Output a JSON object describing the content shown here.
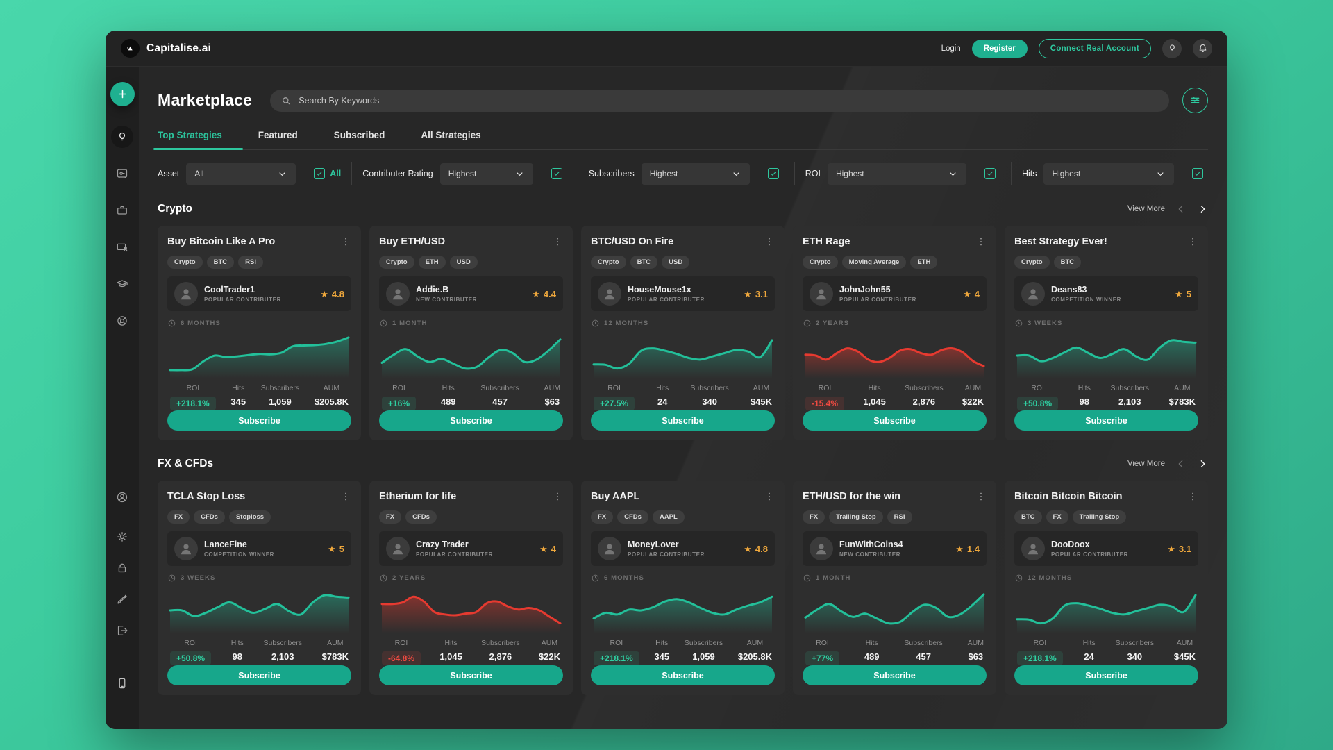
{
  "brand": {
    "name": "Capitalise.ai"
  },
  "topbar": {
    "login_label": "Login",
    "register_label": "Register",
    "connect_label": "Connect Real Account"
  },
  "header": {
    "title": "Marketplace",
    "search_placeholder": "Search By Keywords"
  },
  "tabs": [
    {
      "label": "Top Strategies",
      "active": true
    },
    {
      "label": "Featured",
      "active": false
    },
    {
      "label": "Subscribed",
      "active": false
    },
    {
      "label": "All Strategies",
      "active": false
    }
  ],
  "filters": [
    {
      "label": "Asset",
      "value": "All",
      "checkbox": {
        "checked": true,
        "label": "All"
      }
    },
    {
      "label": "Contributer Rating",
      "value": "Highest"
    },
    {
      "label": "Subscribers",
      "value": "Highest"
    },
    {
      "label": "ROI",
      "value": "Highest"
    },
    {
      "label": "Hits",
      "value": "Highest"
    }
  ],
  "view_more_label": "View More",
  "subscribe_label": "Subscribe",
  "sections": [
    {
      "title": "Crypto",
      "cards": [
        {
          "title": "Buy Bitcoin Like A Pro",
          "tags": [
            "Crypto",
            "BTC",
            "RSI"
          ],
          "author": "CoolTrader1",
          "badge": "POPULAR CONTRIBUTER",
          "rating": "4.8",
          "period": "6 MONTHS",
          "trend": "up",
          "spark": [
            14,
            14,
            16,
            36,
            50,
            46,
            48,
            51,
            54,
            53,
            57,
            73,
            75,
            76,
            79,
            85,
            95
          ],
          "stats": [
            {
              "label": "ROI",
              "value": "+218.1%",
              "kind": "pos"
            },
            {
              "label": "Hits",
              "value": "345"
            },
            {
              "label": "Subscribers",
              "value": "1,059"
            },
            {
              "label": "AUM",
              "value": "$205.8K"
            }
          ]
        },
        {
          "title": "Buy ETH/USD",
          "tags": [
            "Crypto",
            "ETH",
            "USD"
          ],
          "author": "Addie.B",
          "badge": "NEW CONTRIBUTER",
          "rating": "4.4",
          "period": "1 MONTH",
          "trend": "up",
          "spark": [
            32,
            52,
            66,
            48,
            34,
            42,
            30,
            18,
            22,
            46,
            64,
            56,
            34,
            40,
            62,
            90
          ],
          "stats": [
            {
              "label": "ROI",
              "value": "+16%",
              "kind": "pos"
            },
            {
              "label": "Hits",
              "value": "489"
            },
            {
              "label": "Subscribers",
              "value": "457"
            },
            {
              "label": "AUM",
              "value": "$63"
            }
          ]
        },
        {
          "title": "BTC/USD On Fire",
          "tags": [
            "Crypto",
            "BTC",
            "USD"
          ],
          "author": "HouseMouse1x",
          "badge": "POPULAR CONTRIBUTER",
          "rating": "3.1",
          "period": "12 MONTHS",
          "trend": "up",
          "spark": [
            28,
            27,
            18,
            30,
            62,
            68,
            62,
            54,
            44,
            40,
            48,
            56,
            64,
            60,
            46,
            88
          ],
          "stats": [
            {
              "label": "ROI",
              "value": "+27.5%",
              "kind": "pos"
            },
            {
              "label": "Hits",
              "value": "24"
            },
            {
              "label": "Subscribers",
              "value": "340"
            },
            {
              "label": "AUM",
              "value": "$45K"
            }
          ]
        },
        {
          "title": "ETH Rage",
          "tags": [
            "Crypto",
            "Moving Average",
            "ETH"
          ],
          "author": "JohnJohn55",
          "badge": "POPULAR CONTRIBUTER",
          "rating": "4",
          "period": "2 YEARS",
          "trend": "down",
          "spark": [
            52,
            50,
            40,
            56,
            68,
            60,
            40,
            34,
            44,
            62,
            66,
            56,
            52,
            64,
            68,
            58,
            36,
            24
          ],
          "stats": [
            {
              "label": "ROI",
              "value": "-15.4%",
              "kind": "neg"
            },
            {
              "label": "Hits",
              "value": "1,045"
            },
            {
              "label": "Subscribers",
              "value": "2,876"
            },
            {
              "label": "AUM",
              "value": "$22K"
            }
          ]
        },
        {
          "title": "Best Strategy Ever!",
          "tags": [
            "Crypto",
            "BTC"
          ],
          "author": "Deans83",
          "badge": "COMPETITION WINNER",
          "rating": "5",
          "period": "3 WEEKS",
          "trend": "up",
          "spark": [
            50,
            50,
            36,
            44,
            58,
            70,
            56,
            44,
            54,
            66,
            48,
            40,
            70,
            88,
            84,
            82
          ],
          "stats": [
            {
              "label": "ROI",
              "value": "+50.8%",
              "kind": "pos"
            },
            {
              "label": "Hits",
              "value": "98"
            },
            {
              "label": "Subscribers",
              "value": "2,103"
            },
            {
              "label": "AUM",
              "value": "$783K"
            }
          ]
        }
      ]
    },
    {
      "title": "FX & CFDs",
      "cards": [
        {
          "title": "TCLA Stop Loss",
          "tags": [
            "FX",
            "CFDs",
            "Stoploss"
          ],
          "author": "LanceFine",
          "badge": "COMPETITION WINNER",
          "rating": "5",
          "period": "3 WEEKS",
          "trend": "up",
          "spark": [
            50,
            50,
            36,
            44,
            58,
            70,
            56,
            44,
            54,
            66,
            48,
            40,
            70,
            88,
            84,
            82
          ],
          "stats": [
            {
              "label": "ROI",
              "value": "+50.8%",
              "kind": "pos"
            },
            {
              "label": "Hits",
              "value": "98"
            },
            {
              "label": "Subscribers",
              "value": "2,103"
            },
            {
              "label": "AUM",
              "value": "$783K"
            }
          ]
        },
        {
          "title": "Etherium for life",
          "tags": [
            "FX",
            "CFDs"
          ],
          "author": "Crazy Trader",
          "badge": "POPULAR CONTRIBUTER",
          "rating": "4",
          "period": "2 YEARS",
          "trend": "down",
          "spark": [
            66,
            66,
            70,
            84,
            72,
            46,
            40,
            38,
            42,
            46,
            68,
            72,
            60,
            52,
            56,
            50,
            34,
            18
          ],
          "stats": [
            {
              "label": "ROI",
              "value": "-64.8%",
              "kind": "neg"
            },
            {
              "label": "Hits",
              "value": "1,045"
            },
            {
              "label": "Subscribers",
              "value": "2,876"
            },
            {
              "label": "AUM",
              "value": "$22K"
            }
          ]
        },
        {
          "title": "Buy AAPL",
          "tags": [
            "FX",
            "CFDs",
            "AAPL"
          ],
          "author": "MoneyLover",
          "badge": "POPULAR CONTRIBUTER",
          "rating": "4.8",
          "period": "6 MONTHS",
          "trend": "up",
          "spark": [
            30,
            44,
            40,
            52,
            50,
            58,
            72,
            78,
            70,
            56,
            44,
            40,
            52,
            62,
            70,
            84
          ],
          "stats": [
            {
              "label": "ROI",
              "value": "+218.1%",
              "kind": "pos"
            },
            {
              "label": "Hits",
              "value": "345"
            },
            {
              "label": "Subscribers",
              "value": "1,059"
            },
            {
              "label": "AUM",
              "value": "$205.8K"
            }
          ]
        },
        {
          "title": "ETH/USD for the win",
          "tags": [
            "FX",
            "Trailing Stop",
            "RSI"
          ],
          "author": "FunWithCoins4",
          "badge": "NEW CONTRIBUTER",
          "rating": "1.4",
          "period": "1 MONTH",
          "trend": "up",
          "spark": [
            32,
            52,
            66,
            48,
            34,
            42,
            30,
            18,
            22,
            46,
            64,
            56,
            34,
            40,
            62,
            90
          ],
          "stats": [
            {
              "label": "ROI",
              "value": "+77%",
              "kind": "pos"
            },
            {
              "label": "Hits",
              "value": "489"
            },
            {
              "label": "Subscribers",
              "value": "457"
            },
            {
              "label": "AUM",
              "value": "$63"
            }
          ]
        },
        {
          "title": "Bitcoin Bitcoin Bitcoin",
          "tags": [
            "BTC",
            "FX",
            "Trailing Stop"
          ],
          "author": "DooDoox",
          "badge": "POPULAR CONTRIBUTER",
          "rating": "3.1",
          "period": "12 MONTHS",
          "trend": "up",
          "spark": [
            28,
            27,
            18,
            30,
            62,
            68,
            62,
            54,
            44,
            40,
            48,
            56,
            64,
            60,
            46,
            88
          ],
          "stats": [
            {
              "label": "ROI",
              "value": "+218.1%",
              "kind": "pos"
            },
            {
              "label": "Hits",
              "value": "24"
            },
            {
              "label": "Subscribers",
              "value": "340"
            },
            {
              "label": "AUM",
              "value": "$45K"
            }
          ]
        }
      ]
    }
  ],
  "sidebar": {
    "top_items": [
      {
        "icon": "bulb",
        "active": true
      },
      {
        "icon": "vault",
        "active": false
      },
      {
        "icon": "briefcase",
        "active": false
      },
      {
        "icon": "screencast",
        "active": false
      },
      {
        "icon": "gradcap",
        "active": false
      },
      {
        "icon": "lifering",
        "active": false
      }
    ],
    "bottom_items": [
      {
        "icon": "user"
      },
      {
        "icon": "gear"
      },
      {
        "icon": "lock"
      },
      {
        "icon": "brush"
      },
      {
        "icon": "signout"
      }
    ],
    "footer_icon": "phone"
  },
  "colors": {
    "accent": "#1fb090",
    "accent_bright": "#2ec79e",
    "chart_up": "#23c09a",
    "chart_down": "#e63a30",
    "positive": "#2fd0a2",
    "negative": "#ef4a41",
    "star": "#efa83d",
    "page_background": "#3dcb9e"
  }
}
